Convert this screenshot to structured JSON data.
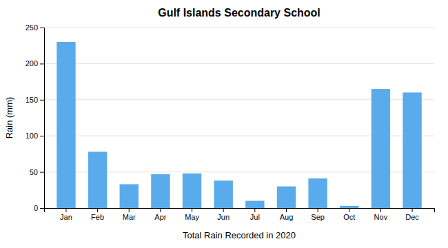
{
  "chart_data": {
    "type": "bar",
    "title": "Gulf Islands Secondary School",
    "xlabel": "Total Rain Recorded in 2020",
    "ylabel": "Rain (mm)",
    "categories": [
      "Jan",
      "Feb",
      "Mar",
      "Apr",
      "May",
      "Jun",
      "Jul",
      "Aug",
      "Sep",
      "Oct",
      "Nov",
      "Dec"
    ],
    "values": [
      230,
      78,
      33,
      47,
      48,
      38,
      10,
      30,
      41,
      3,
      165,
      160
    ],
    "color": "#5aabec",
    "ylim": [
      0,
      250
    ],
    "yticks": [
      0,
      50,
      100,
      150,
      200,
      250
    ],
    "grid": true
  }
}
